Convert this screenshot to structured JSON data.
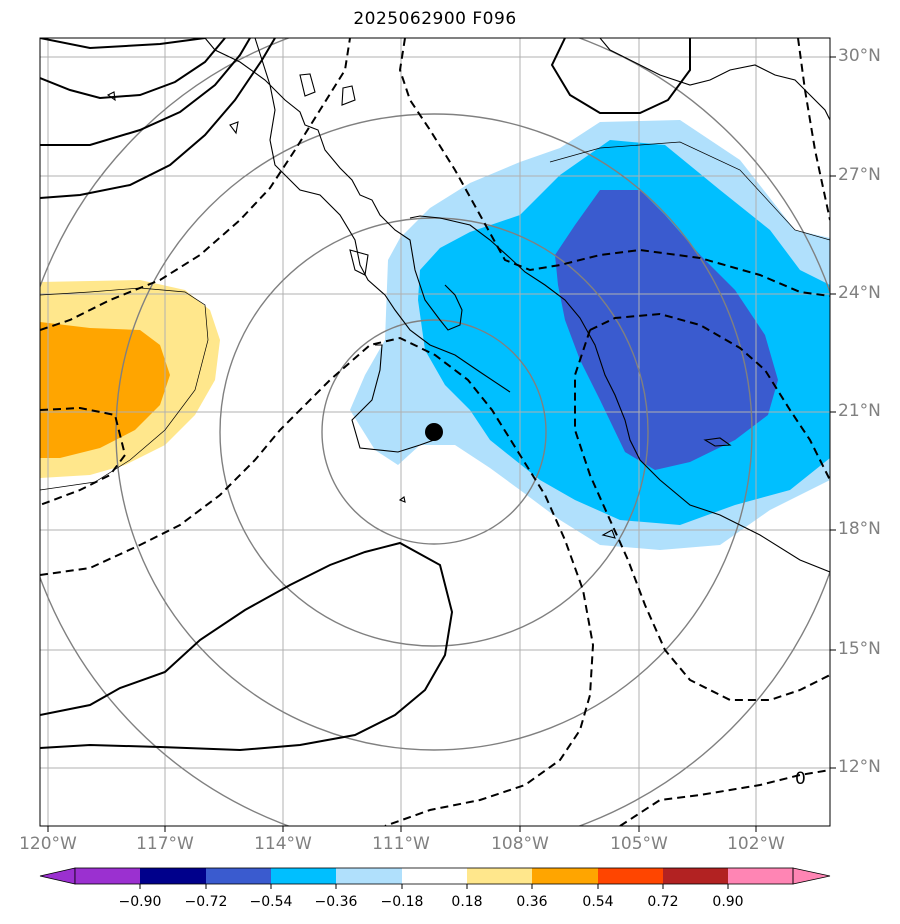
{
  "title": "2025062900 F096",
  "lat_ticks": [
    {
      "label": "30°N"
    },
    {
      "label": "27°N"
    },
    {
      "label": "24°N"
    },
    {
      "label": "21°N"
    },
    {
      "label": "18°N"
    },
    {
      "label": "15°N"
    },
    {
      "label": "12°N"
    }
  ],
  "lon_ticks": [
    {
      "label": "120°W"
    },
    {
      "label": "117°W"
    },
    {
      "label": "114°W"
    },
    {
      "label": "111°W"
    },
    {
      "label": "108°W"
    },
    {
      "label": "105°W"
    },
    {
      "label": "102°W"
    }
  ],
  "contour_label": "0",
  "colorbar": {
    "labels": [
      "−0.90",
      "−0.72",
      "−0.54",
      "−0.36",
      "−0.18",
      "0.18",
      "0.36",
      "0.54",
      "0.72",
      "0.90"
    ],
    "colors": [
      "#9b30d0",
      "#00008b",
      "#3a5bcf",
      "#00bfff",
      "#b0e0fc",
      "#ffffff",
      "#ffe78c",
      "#ffa500",
      "#ff4500",
      "#b22222",
      "#ff85b4"
    ]
  },
  "fill_colors": {
    "light_blue": "#b0e0fc",
    "blue": "#00bfff",
    "dark_blue": "#3a5bcf",
    "light_yellow": "#ffe78c",
    "orange": "#ffa500"
  }
}
